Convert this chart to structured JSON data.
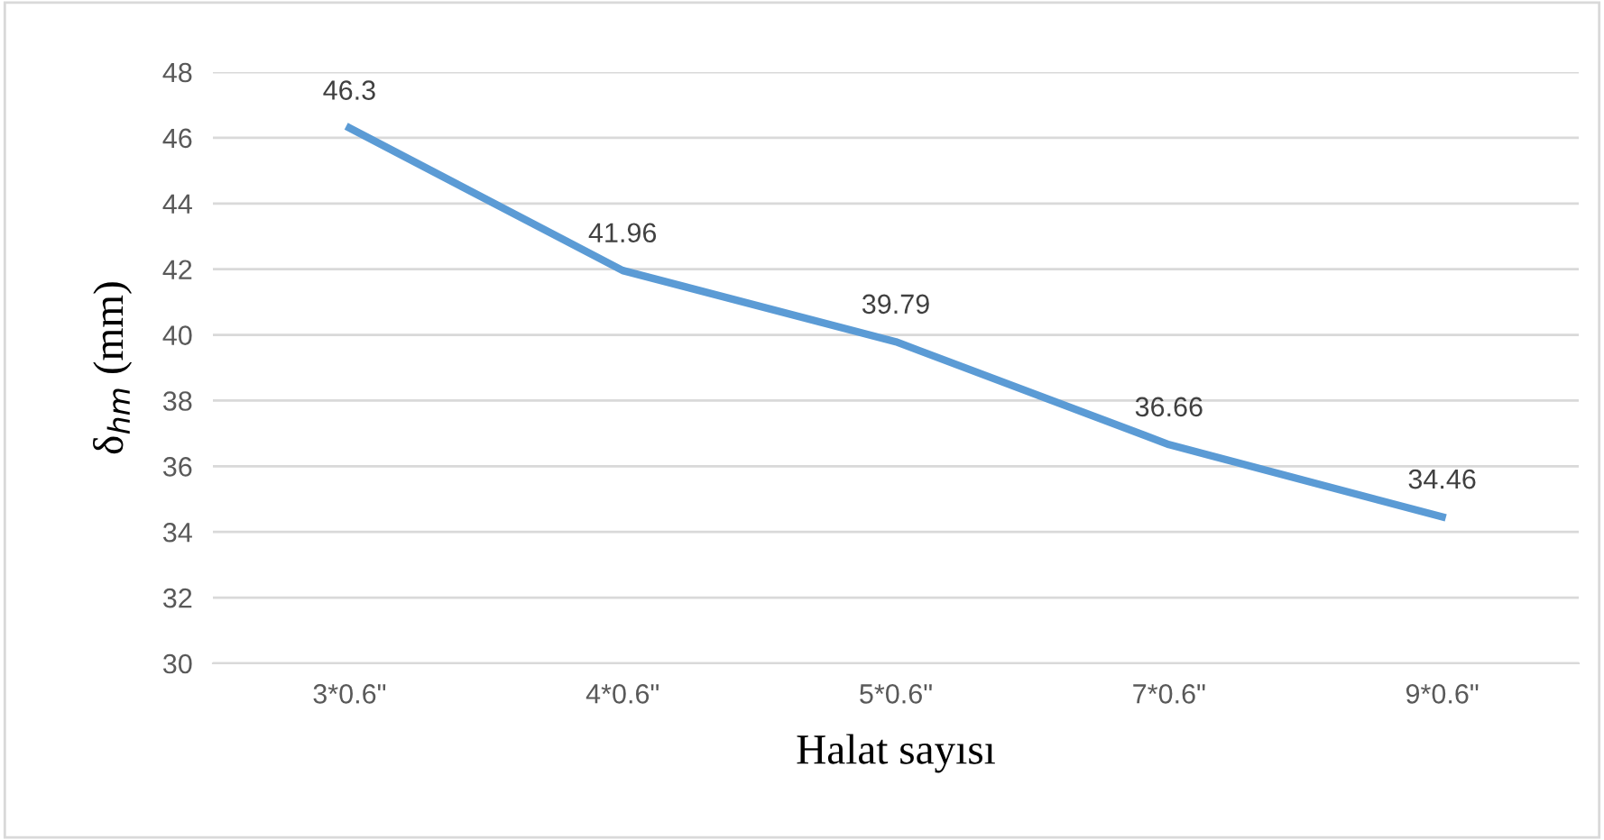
{
  "chart_data": {
    "type": "line",
    "xlabel": "Halat sayısı",
    "ylabel": "δ$_{hm}$ (mm)",
    "categories": [
      "3*0.6\"",
      "4*0.6\"",
      "5*0.6\"",
      "7*0.6\"",
      "9*0.6\""
    ],
    "series": [
      {
        "color": "#5b9bd5",
        "values": [
          46.3,
          41.96,
          39.79,
          36.66,
          34.46
        ]
      }
    ],
    "ylim": [
      30,
      48
    ],
    "yticks": [
      30,
      32,
      34,
      36,
      38,
      40,
      42,
      44,
      46,
      48
    ],
    "grid": "y",
    "data_labels": true,
    "marker": "none",
    "line_style": "solid",
    "legend": false
  }
}
